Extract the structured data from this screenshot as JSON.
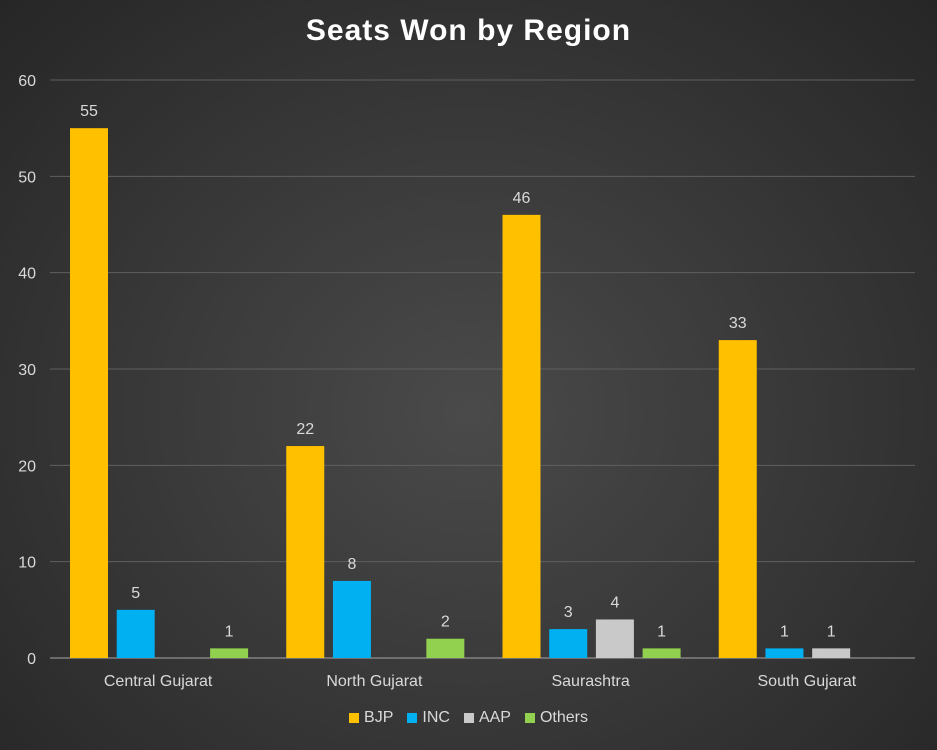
{
  "chart_data": {
    "type": "bar",
    "title": "Seats Won by Region",
    "categories": [
      "Central Gujarat",
      "North Gujarat",
      "Saurashtra",
      "South Gujarat"
    ],
    "series": [
      {
        "name": "BJP",
        "color": "#FFC000",
        "values": [
          55,
          22,
          46,
          33
        ]
      },
      {
        "name": "INC",
        "color": "#00B0F0",
        "values": [
          5,
          8,
          3,
          1
        ]
      },
      {
        "name": "AAP",
        "color": "#C9C9C9",
        "values": [
          null,
          null,
          4,
          1
        ]
      },
      {
        "name": "Others",
        "color": "#92D050",
        "values": [
          1,
          2,
          1,
          null
        ]
      }
    ],
    "yticks": [
      0,
      10,
      20,
      30,
      40,
      50,
      60
    ],
    "ylim": [
      0,
      60
    ],
    "grid": true,
    "legend_position": "bottom"
  }
}
